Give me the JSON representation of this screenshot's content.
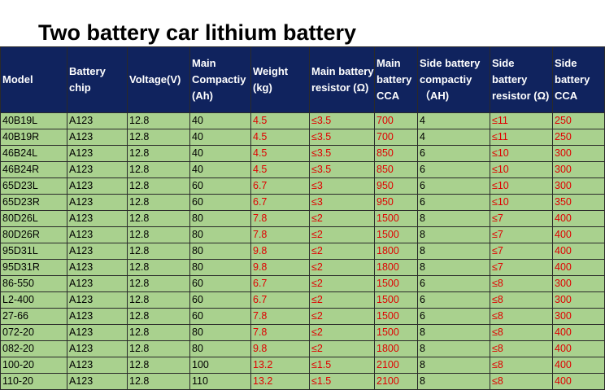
{
  "title": "Two battery car lithium battery",
  "headers": [
    "Model",
    "Battery chip",
    "Voltage(V)",
    "Main Compactiy (Ah)",
    "Weight (kg)",
    "Main battery resistor (Ω)",
    "Main battery CCA",
    "Side battery compactiy （AH)",
    "Side battery resistor (Ω)",
    "Side battery CCA"
  ],
  "rows": [
    [
      "40B19L",
      "A123",
      "12.8",
      "40",
      "4.5",
      "≤3.5",
      "700",
      "4",
      "≤11",
      "250"
    ],
    [
      "40B19R",
      "A123",
      "12.8",
      "40",
      "4.5",
      "≤3.5",
      "700",
      "4",
      "≤11",
      "250"
    ],
    [
      "46B24L",
      "A123",
      "12.8",
      "40",
      "4.5",
      "≤3.5",
      "850",
      "6",
      "≤10",
      "300"
    ],
    [
      "46B24R",
      "A123",
      "12.8",
      "40",
      "4.5",
      "≤3.5",
      "850",
      "6",
      "≤10",
      "300"
    ],
    [
      "65D23L",
      "A123",
      "12.8",
      "60",
      "6.7",
      "≤3",
      "950",
      "6",
      "≤10",
      "300"
    ],
    [
      "65D23R",
      "A123",
      "12.8",
      "60",
      "6.7",
      "≤3",
      "950",
      "6",
      "≤10",
      "350"
    ],
    [
      "80D26L",
      "A123",
      "12.8",
      "80",
      "7.8",
      "≤2",
      "1500",
      "8",
      "≤7",
      "400"
    ],
    [
      "80D26R",
      "A123",
      "12.8",
      "80",
      "7.8",
      "≤2",
      "1500",
      "8",
      "≤7",
      "400"
    ],
    [
      "95D31L",
      "A123",
      "12.8",
      "80",
      "9.8",
      "≤2",
      "1800",
      "8",
      "≤7",
      "400"
    ],
    [
      "95D31R",
      "A123",
      "12.8",
      "80",
      "9.8",
      "≤2",
      "1800",
      "8",
      "≤7",
      "400"
    ],
    [
      "86-550",
      "A123",
      "12.8",
      "60",
      "6.7",
      "≤2",
      "1500",
      "6",
      "≤8",
      "300"
    ],
    [
      "L2-400",
      "A123",
      "12.8",
      "60",
      "6.7",
      "≤2",
      "1500",
      "6",
      "≤8",
      "300"
    ],
    [
      "27-66",
      "A123",
      "12.8",
      "60",
      "7.8",
      "≤2",
      "1500",
      "6",
      "≤8",
      "300"
    ],
    [
      "072-20",
      "A123",
      "12.8",
      "80",
      "7.8",
      "≤2",
      "1500",
      "8",
      "≤8",
      "400"
    ],
    [
      "082-20",
      "A123",
      "12.8",
      "80",
      "9.8",
      "≤2",
      "1800",
      "8",
      "≤8",
      "400"
    ],
    [
      "100-20",
      "A123",
      "12.8",
      "100",
      "13.2",
      "≤1.5",
      "2100",
      "8",
      "≤8",
      "400"
    ],
    [
      "110-20",
      "A123",
      "12.8",
      "110",
      "13.2",
      "≤1.5",
      "2100",
      "8",
      "≤8",
      "400"
    ]
  ],
  "colors": {
    "header_bg": "#10235e",
    "header_text": "#ffffff",
    "row_bg": "#a9d18e",
    "value_red": "#e00000"
  }
}
